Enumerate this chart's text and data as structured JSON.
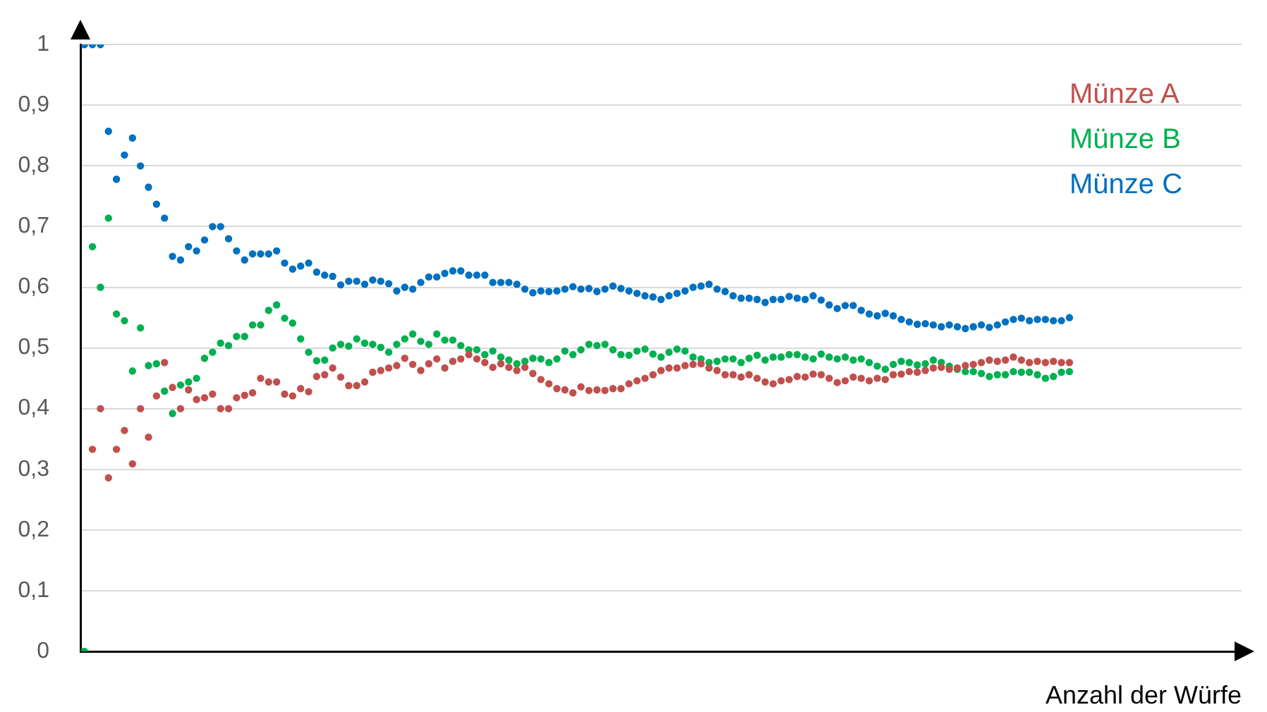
{
  "chart_data": {
    "type": "scatter",
    "xlabel": "Anzahl der Würfe",
    "tick_labels": "y",
    "marker": "circle",
    "grid": "y",
    "legend": "top right",
    "ylim": [
      0,
      1
    ],
    "yticks": [
      0,
      {
        "value": 0.1,
        "label": "0,1"
      },
      {
        "value": 0.2,
        "label": "0,2"
      },
      {
        "value": 0.3,
        "label": "0,3"
      },
      {
        "value": 0.4,
        "label": "0,4"
      },
      {
        "value": 0.5,
        "label": "0,5"
      },
      {
        "value": 0.6,
        "label": "0,6"
      },
      {
        "value": 0.7,
        "label": "0,7"
      },
      {
        "value": 0.8,
        "label": "0,8"
      },
      {
        "value": 0.9,
        "label": "0,9"
      },
      1
    ],
    "categories": [
      null,
      null,
      null,
      null,
      null,
      null,
      null,
      null,
      null,
      null,
      null,
      null,
      null,
      null,
      null,
      null,
      null,
      null,
      null,
      null,
      null,
      null,
      null,
      null,
      null,
      null,
      null,
      null,
      null,
      null,
      null,
      null,
      null,
      null,
      null,
      null,
      null,
      null,
      null,
      null,
      null,
      null,
      null,
      null,
      null,
      null,
      null,
      null,
      null,
      null,
      null,
      null,
      null,
      null,
      null,
      null,
      null,
      null,
      null,
      null,
      null,
      null,
      null,
      null,
      null,
      null,
      null,
      null,
      null,
      null,
      null,
      null,
      null,
      null,
      null,
      null,
      null,
      null,
      null,
      null,
      null,
      null,
      null,
      null,
      null,
      null,
      null,
      null,
      null,
      null,
      null,
      null,
      null,
      null,
      null,
      null,
      null,
      null,
      null,
      null,
      null,
      null,
      null,
      null,
      null,
      null,
      null,
      null,
      null,
      null,
      null,
      null,
      null,
      null,
      null,
      null,
      null,
      null,
      null,
      null,
      null,
      null,
      null,
      null,
      null,
      null,
      null,
      null,
      null,
      null,
      null,
      null,
      null,
      null,
      null,
      null,
      null,
      null,
      null,
      null,
      null,
      null,
      null,
      null,
      null
    ],
    "series": [
      {
        "name": "Münze A",
        "color": "#c0504d",
        "values": [
          null,
          0.333,
          0.4,
          0.286,
          0.333,
          0.364,
          0.309,
          0.4,
          0.353,
          0.421,
          0.476,
          0.435,
          0.4,
          0.431,
          0.415,
          0.418,
          0.424,
          0.4,
          0.4,
          0.418,
          0.422,
          0.426,
          0.45,
          0.444,
          0.444,
          0.424,
          0.421,
          0.433,
          0.428,
          0.453,
          0.456,
          0.467,
          0.452,
          0.438,
          0.438,
          0.444,
          0.46,
          0.463,
          0.467,
          0.471,
          0.483,
          0.473,
          0.463,
          0.474,
          0.482,
          0.467,
          0.478,
          0.482,
          0.489,
          0.482,
          0.476,
          0.468,
          0.474,
          0.468,
          0.463,
          0.468,
          0.458,
          0.448,
          0.441,
          0.433,
          0.431,
          0.426,
          0.436,
          0.43,
          0.431,
          0.43,
          0.433,
          0.433,
          0.441,
          0.446,
          0.45,
          0.456,
          0.463,
          0.467,
          0.467,
          0.471,
          0.473,
          0.474,
          0.467,
          0.463,
          0.456,
          0.456,
          0.452,
          0.456,
          0.45,
          0.444,
          0.441,
          0.446,
          0.448,
          0.453,
          0.452,
          0.457,
          0.456,
          0.45,
          0.443,
          0.446,
          0.452,
          0.45,
          0.446,
          0.45,
          0.448,
          0.456,
          0.457,
          0.461,
          0.46,
          0.463,
          0.467,
          0.468,
          0.465,
          0.467,
          0.471,
          0.473,
          0.476,
          0.48,
          0.478,
          0.48,
          0.485,
          0.48,
          0.476,
          0.478,
          0.476,
          0.478,
          0.476,
          0.476,
          null,
          null,
          null,
          null,
          null,
          null,
          null,
          null,
          null,
          null,
          null,
          null,
          null,
          null,
          null,
          null,
          null,
          null,
          null,
          null,
          null
        ]
      },
      {
        "name": "Münze B",
        "color": "#00b050",
        "values": [
          0,
          0.667,
          0.6,
          0.714,
          0.556,
          0.545,
          0.462,
          0.533,
          0.471,
          0.474,
          0.429,
          0.392,
          0.439,
          0.444,
          0.45,
          0.483,
          0.493,
          0.508,
          0.504,
          0.519,
          0.519,
          0.538,
          0.538,
          0.562,
          0.571,
          0.549,
          0.541,
          0.515,
          0.493,
          0.479,
          0.48,
          0.5,
          0.506,
          0.503,
          0.515,
          0.508,
          0.506,
          0.501,
          0.493,
          0.506,
          0.515,
          0.523,
          0.511,
          0.506,
          0.523,
          0.513,
          0.513,
          0.504,
          0.497,
          0.497,
          0.489,
          0.495,
          0.485,
          0.48,
          0.474,
          0.478,
          0.483,
          0.482,
          0.476,
          0.482,
          0.495,
          0.489,
          0.497,
          0.506,
          0.504,
          0.506,
          0.497,
          0.489,
          0.488,
          0.495,
          0.498,
          0.49,
          0.485,
          0.493,
          0.498,
          0.495,
          0.485,
          0.482,
          0.476,
          0.478,
          0.482,
          0.482,
          0.476,
          0.483,
          0.488,
          0.48,
          0.485,
          0.485,
          0.489,
          0.489,
          0.485,
          0.482,
          0.49,
          0.485,
          0.482,
          0.485,
          0.48,
          0.482,
          0.476,
          0.47,
          0.465,
          0.473,
          0.478,
          0.476,
          0.472,
          0.474,
          0.48,
          0.476,
          0.47,
          0.465,
          0.461,
          0.461,
          0.458,
          0.453,
          0.456,
          0.456,
          0.461,
          0.46,
          0.46,
          0.456,
          0.45,
          0.453,
          0.46,
          0.461,
          null,
          null,
          null,
          null,
          null,
          null,
          null,
          null,
          null,
          null,
          null,
          null,
          null,
          null,
          null,
          null,
          null,
          null,
          null,
          null,
          null
        ]
      },
      {
        "name": "Münze C",
        "color": "#0070c0",
        "values": [
          1,
          1,
          1,
          0.857,
          0.778,
          0.818,
          0.846,
          0.8,
          0.765,
          0.737,
          0.714,
          0.651,
          0.645,
          0.667,
          0.66,
          0.678,
          0.7,
          0.7,
          0.68,
          0.66,
          0.645,
          0.655,
          0.655,
          0.655,
          0.66,
          0.64,
          0.63,
          0.635,
          0.64,
          0.625,
          0.62,
          0.618,
          0.604,
          0.61,
          0.61,
          0.605,
          0.612,
          0.61,
          0.606,
          0.594,
          0.6,
          0.597,
          0.608,
          0.617,
          0.617,
          0.623,
          0.627,
          0.627,
          0.62,
          0.62,
          0.62,
          0.608,
          0.608,
          0.608,
          0.605,
          0.597,
          0.591,
          0.594,
          0.593,
          0.594,
          0.597,
          0.601,
          0.597,
          0.598,
          0.593,
          0.597,
          0.602,
          0.598,
          0.594,
          0.59,
          0.586,
          0.584,
          0.58,
          0.586,
          0.59,
          0.594,
          0.6,
          0.602,
          0.605,
          0.597,
          0.593,
          0.586,
          0.582,
          0.582,
          0.58,
          0.575,
          0.58,
          0.58,
          0.585,
          0.582,
          0.58,
          0.586,
          0.579,
          0.571,
          0.565,
          0.57,
          0.57,
          0.562,
          0.556,
          0.553,
          0.557,
          0.553,
          0.547,
          0.543,
          0.539,
          0.54,
          0.538,
          0.535,
          0.538,
          0.535,
          0.532,
          0.535,
          0.538,
          0.534,
          0.538,
          0.543,
          0.547,
          0.549,
          0.545,
          0.547,
          0.547,
          0.545,
          0.545,
          0.55,
          null,
          null,
          null,
          null,
          null,
          null,
          null,
          null,
          null,
          null,
          null,
          null,
          null,
          null,
          null,
          null,
          null,
          null,
          null,
          null,
          null
        ]
      }
    ]
  }
}
